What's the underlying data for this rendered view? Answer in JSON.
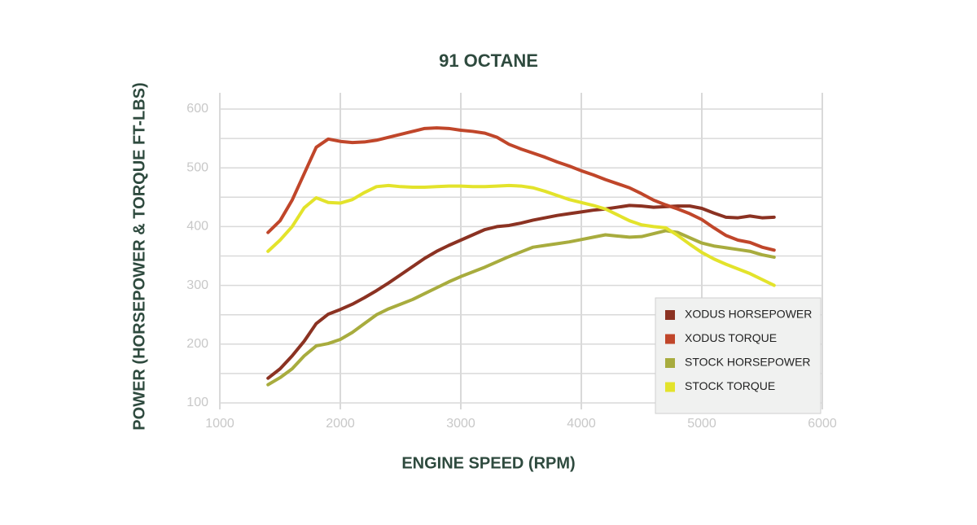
{
  "chart_data": {
    "type": "line",
    "title": "91 OCTANE",
    "xlabel": "ENGINE SPEED (RPM)",
    "ylabel": "POWER (HORSEPOWER & TORQUE FT-LBS)",
    "x": [
      1400,
      1500,
      1600,
      1700,
      1800,
      1900,
      2000,
      2100,
      2200,
      2300,
      2400,
      2500,
      2600,
      2700,
      2800,
      2900,
      3000,
      3100,
      3200,
      3300,
      3400,
      3500,
      3600,
      3700,
      3800,
      3900,
      4000,
      4100,
      4200,
      4300,
      4400,
      4500,
      4600,
      4700,
      4800,
      4900,
      5000,
      5100,
      5200,
      5300,
      5400,
      5500,
      5600
    ],
    "series": [
      {
        "name": "XODUS HORSEPOWER",
        "color": "#8b3222",
        "values": [
          142,
          158,
          180,
          205,
          235,
          251,
          259,
          268,
          279,
          291,
          304,
          318,
          332,
          346,
          358,
          368,
          377,
          386,
          395,
          400,
          402,
          406,
          411,
          415,
          419,
          422,
          425,
          428,
          430,
          433,
          436,
          435,
          433,
          434,
          435,
          435,
          431,
          423,
          416,
          415,
          418,
          415,
          416
        ]
      },
      {
        "name": "XODUS TORQUE",
        "color": "#c0462a",
        "values": [
          390,
          410,
          445,
          490,
          535,
          549,
          545,
          543,
          544,
          547,
          552,
          557,
          562,
          567,
          568,
          567,
          564,
          562,
          559,
          552,
          540,
          532,
          525,
          518,
          510,
          503,
          495,
          488,
          480,
          473,
          466,
          456,
          445,
          437,
          430,
          422,
          412,
          398,
          385,
          377,
          373,
          365,
          360
        ]
      },
      {
        "name": "STOCK HORSEPOWER",
        "color": "#a8ac3e",
        "values": [
          131,
          143,
          158,
          180,
          197,
          201,
          208,
          220,
          235,
          250,
          260,
          268,
          276,
          286,
          296,
          306,
          315,
          323,
          331,
          340,
          349,
          357,
          365,
          368,
          371,
          374,
          378,
          382,
          386,
          384,
          382,
          383,
          388,
          393,
          390,
          381,
          372,
          367,
          364,
          361,
          358,
          352,
          348
        ]
      },
      {
        "name": "STOCK TORQUE",
        "color": "#e3e32b",
        "values": [
          358,
          377,
          400,
          432,
          449,
          441,
          440,
          446,
          458,
          468,
          470,
          468,
          467,
          467,
          468,
          469,
          469,
          468,
          468,
          469,
          470,
          469,
          466,
          460,
          453,
          446,
          441,
          436,
          430,
          420,
          410,
          403,
          400,
          398,
          385,
          370,
          356,
          345,
          336,
          328,
          320,
          310,
          300
        ]
      }
    ],
    "xlim": [
      1000,
      6000
    ],
    "xticks": [
      1000,
      2000,
      3000,
      4000,
      5000,
      6000
    ],
    "ylim": [
      100,
      600
    ],
    "yticks": [
      100,
      200,
      300,
      400,
      500,
      600
    ],
    "minor_yticks": [
      150,
      250,
      350,
      450,
      550
    ],
    "grid": true,
    "legend": "lower right"
  }
}
